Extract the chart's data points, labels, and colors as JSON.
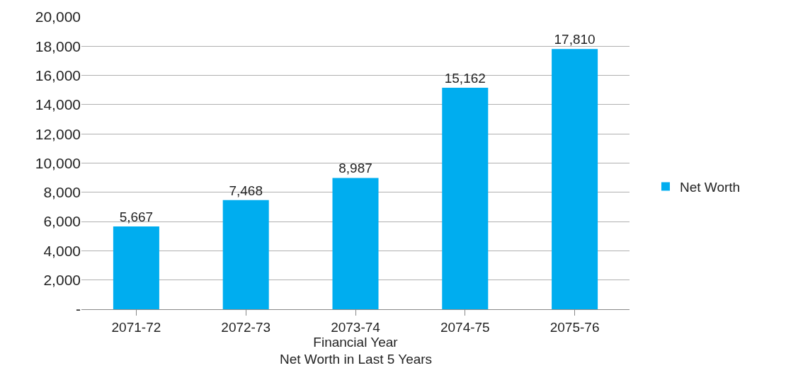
{
  "chart_data": {
    "type": "bar",
    "categories": [
      "2071-72",
      "2072-73",
      "2073-74",
      "2074-75",
      "2075-76"
    ],
    "series": [
      {
        "name": "Net Worth",
        "color": "#00adef",
        "values": [
          5667,
          7468,
          8987,
          15162,
          17810
        ],
        "value_labels": [
          "5,667",
          "7,468",
          "8,987",
          "15,162",
          "17,810"
        ]
      }
    ],
    "xlabel": "Financial Year",
    "annotations": [
      "Net Worth in Last 5 Years"
    ],
    "ylim": [
      0,
      20000
    ],
    "yticks": [
      {
        "value": 0,
        "label": "-"
      },
      {
        "value": 2000,
        "label": "2,000"
      },
      {
        "value": 4000,
        "label": "4,000"
      },
      {
        "value": 6000,
        "label": "6,000"
      },
      {
        "value": 8000,
        "label": "8,000"
      },
      {
        "value": 10000,
        "label": "10,000"
      },
      {
        "value": 12000,
        "label": "12,000"
      },
      {
        "value": 14000,
        "label": "14,000"
      },
      {
        "value": 16000,
        "label": "16,000"
      },
      {
        "value": 18000,
        "label": "18,000"
      },
      {
        "value": 20000,
        "label": "20,000"
      }
    ],
    "grid": "y",
    "legend": "right"
  }
}
